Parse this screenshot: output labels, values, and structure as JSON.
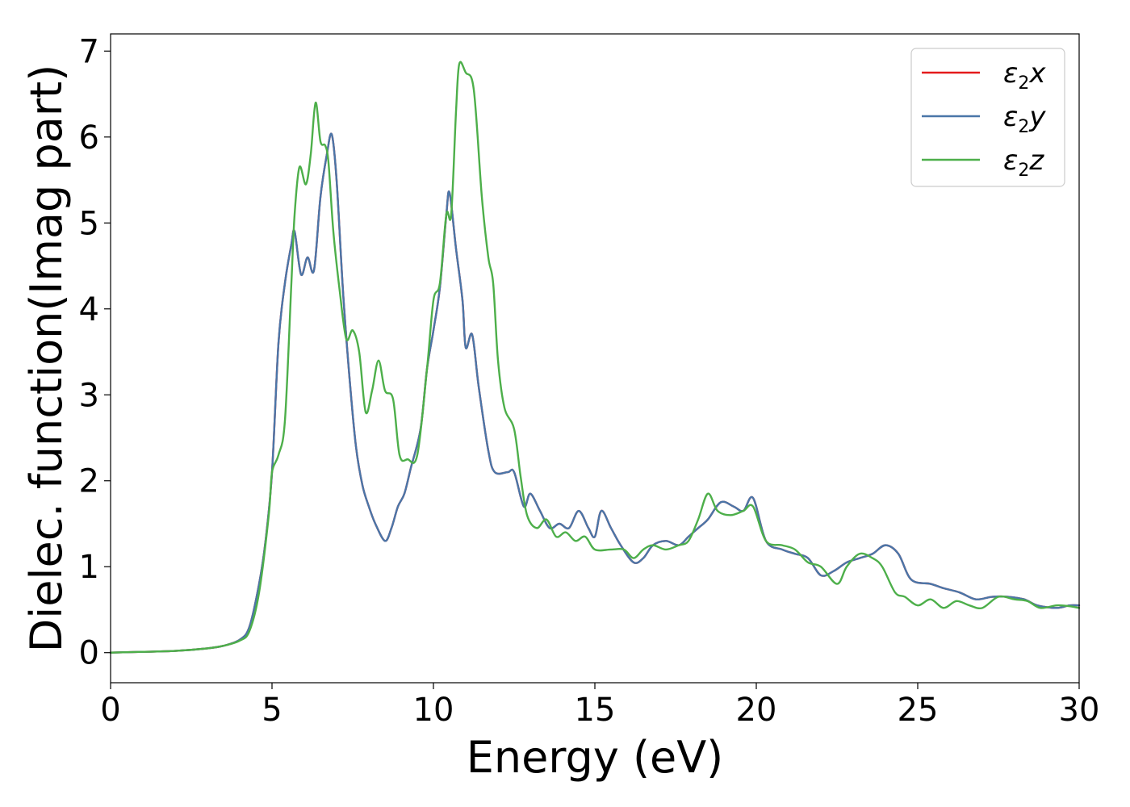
{
  "chart_data": {
    "type": "line",
    "title": "",
    "xlabel": "Energy (eV)",
    "ylabel": "Dielec. function(Imag part)",
    "xlim": [
      0,
      30
    ],
    "ylim": [
      -0.35,
      7.2
    ],
    "xticks": [
      0,
      5,
      10,
      15,
      20,
      25,
      30
    ],
    "yticks": [
      0,
      1,
      2,
      3,
      4,
      5,
      6,
      7
    ],
    "grid": false,
    "legend_position": "top-right",
    "series": [
      {
        "name": "ε2x",
        "legend_base": "ε",
        "legend_sub": "2",
        "legend_var": "x",
        "color": "#e41a1c",
        "points": [
          [
            0,
            0
          ],
          [
            1,
            0.01
          ],
          [
            2,
            0.02
          ],
          [
            3,
            0.05
          ],
          [
            3.5,
            0.08
          ],
          [
            4,
            0.15
          ],
          [
            4.3,
            0.3
          ],
          [
            4.6,
            0.8
          ],
          [
            4.8,
            1.3
          ],
          [
            5,
            2.1
          ],
          [
            5.2,
            3.6
          ],
          [
            5.4,
            4.3
          ],
          [
            5.6,
            4.75
          ],
          [
            5.7,
            4.9
          ],
          [
            5.9,
            4.4
          ],
          [
            6.1,
            4.6
          ],
          [
            6.3,
            4.45
          ],
          [
            6.5,
            5.3
          ],
          [
            6.7,
            5.8
          ],
          [
            6.85,
            6.03
          ],
          [
            7,
            5.5
          ],
          [
            7.2,
            4.2
          ],
          [
            7.4,
            3.2
          ],
          [
            7.6,
            2.4
          ],
          [
            7.8,
            1.95
          ],
          [
            8,
            1.7
          ],
          [
            8.2,
            1.5
          ],
          [
            8.5,
            1.3
          ],
          [
            8.7,
            1.45
          ],
          [
            8.9,
            1.7
          ],
          [
            9.1,
            1.85
          ],
          [
            9.3,
            2.15
          ],
          [
            9.6,
            2.6
          ],
          [
            9.8,
            3.3
          ],
          [
            10,
            3.75
          ],
          [
            10.2,
            4.25
          ],
          [
            10.4,
            5.1
          ],
          [
            10.5,
            5.35
          ],
          [
            10.7,
            4.7
          ],
          [
            10.9,
            4.1
          ],
          [
            11,
            3.55
          ],
          [
            11.2,
            3.7
          ],
          [
            11.4,
            3.1
          ],
          [
            11.7,
            2.35
          ],
          [
            11.9,
            2.1
          ],
          [
            12.3,
            2.1
          ],
          [
            12.5,
            2.1
          ],
          [
            12.8,
            1.7
          ],
          [
            13,
            1.85
          ],
          [
            13.3,
            1.65
          ],
          [
            13.6,
            1.45
          ],
          [
            13.9,
            1.5
          ],
          [
            14.2,
            1.45
          ],
          [
            14.5,
            1.65
          ],
          [
            14.8,
            1.45
          ],
          [
            15,
            1.35
          ],
          [
            15.2,
            1.65
          ],
          [
            15.5,
            1.45
          ],
          [
            15.8,
            1.25
          ],
          [
            16.2,
            1.05
          ],
          [
            16.5,
            1.1
          ],
          [
            16.8,
            1.25
          ],
          [
            17.2,
            1.3
          ],
          [
            17.6,
            1.25
          ],
          [
            17.9,
            1.35
          ],
          [
            18.2,
            1.45
          ],
          [
            18.5,
            1.55
          ],
          [
            18.9,
            1.75
          ],
          [
            19.3,
            1.7
          ],
          [
            19.6,
            1.65
          ],
          [
            19.9,
            1.8
          ],
          [
            20.3,
            1.3
          ],
          [
            20.8,
            1.2
          ],
          [
            21.2,
            1.15
          ],
          [
            21.6,
            1.1
          ],
          [
            22,
            0.9
          ],
          [
            22.4,
            0.95
          ],
          [
            22.8,
            1.05
          ],
          [
            23.2,
            1.1
          ],
          [
            23.6,
            1.15
          ],
          [
            24,
            1.25
          ],
          [
            24.4,
            1.15
          ],
          [
            24.8,
            0.85
          ],
          [
            25.4,
            0.8
          ],
          [
            25.8,
            0.75
          ],
          [
            26.3,
            0.7
          ],
          [
            26.8,
            0.62
          ],
          [
            27.3,
            0.65
          ],
          [
            27.8,
            0.65
          ],
          [
            28.3,
            0.62
          ],
          [
            28.7,
            0.55
          ],
          [
            29.3,
            0.52
          ],
          [
            29.7,
            0.55
          ],
          [
            30,
            0.55
          ]
        ]
      },
      {
        "name": "ε2y",
        "legend_base": "ε",
        "legend_sub": "2",
        "legend_var": "y",
        "color": "#4a76a8",
        "points": [
          [
            0,
            0
          ],
          [
            1,
            0.01
          ],
          [
            2,
            0.02
          ],
          [
            3,
            0.05
          ],
          [
            3.5,
            0.08
          ],
          [
            4,
            0.15
          ],
          [
            4.3,
            0.3
          ],
          [
            4.6,
            0.8
          ],
          [
            4.8,
            1.3
          ],
          [
            5,
            2.1
          ],
          [
            5.2,
            3.6
          ],
          [
            5.4,
            4.3
          ],
          [
            5.6,
            4.75
          ],
          [
            5.7,
            4.9
          ],
          [
            5.9,
            4.4
          ],
          [
            6.1,
            4.6
          ],
          [
            6.3,
            4.45
          ],
          [
            6.5,
            5.3
          ],
          [
            6.7,
            5.8
          ],
          [
            6.85,
            6.03
          ],
          [
            7,
            5.5
          ],
          [
            7.2,
            4.2
          ],
          [
            7.4,
            3.2
          ],
          [
            7.6,
            2.4
          ],
          [
            7.8,
            1.95
          ],
          [
            8,
            1.7
          ],
          [
            8.2,
            1.5
          ],
          [
            8.5,
            1.3
          ],
          [
            8.7,
            1.45
          ],
          [
            8.9,
            1.7
          ],
          [
            9.1,
            1.85
          ],
          [
            9.3,
            2.15
          ],
          [
            9.6,
            2.6
          ],
          [
            9.8,
            3.3
          ],
          [
            10,
            3.75
          ],
          [
            10.2,
            4.25
          ],
          [
            10.4,
            5.1
          ],
          [
            10.5,
            5.35
          ],
          [
            10.7,
            4.7
          ],
          [
            10.9,
            4.1
          ],
          [
            11,
            3.55
          ],
          [
            11.2,
            3.7
          ],
          [
            11.4,
            3.1
          ],
          [
            11.7,
            2.35
          ],
          [
            11.9,
            2.1
          ],
          [
            12.3,
            2.1
          ],
          [
            12.5,
            2.1
          ],
          [
            12.8,
            1.7
          ],
          [
            13,
            1.85
          ],
          [
            13.3,
            1.65
          ],
          [
            13.6,
            1.45
          ],
          [
            13.9,
            1.5
          ],
          [
            14.2,
            1.45
          ],
          [
            14.5,
            1.65
          ],
          [
            14.8,
            1.45
          ],
          [
            15,
            1.35
          ],
          [
            15.2,
            1.65
          ],
          [
            15.5,
            1.45
          ],
          [
            15.8,
            1.25
          ],
          [
            16.2,
            1.05
          ],
          [
            16.5,
            1.1
          ],
          [
            16.8,
            1.25
          ],
          [
            17.2,
            1.3
          ],
          [
            17.6,
            1.25
          ],
          [
            17.9,
            1.35
          ],
          [
            18.2,
            1.45
          ],
          [
            18.5,
            1.55
          ],
          [
            18.9,
            1.75
          ],
          [
            19.3,
            1.7
          ],
          [
            19.6,
            1.65
          ],
          [
            19.9,
            1.8
          ],
          [
            20.3,
            1.3
          ],
          [
            20.8,
            1.2
          ],
          [
            21.2,
            1.15
          ],
          [
            21.6,
            1.1
          ],
          [
            22,
            0.9
          ],
          [
            22.4,
            0.95
          ],
          [
            22.8,
            1.05
          ],
          [
            23.2,
            1.1
          ],
          [
            23.6,
            1.15
          ],
          [
            24,
            1.25
          ],
          [
            24.4,
            1.15
          ],
          [
            24.8,
            0.85
          ],
          [
            25.4,
            0.8
          ],
          [
            25.8,
            0.75
          ],
          [
            26.3,
            0.7
          ],
          [
            26.8,
            0.62
          ],
          [
            27.3,
            0.65
          ],
          [
            27.8,
            0.65
          ],
          [
            28.3,
            0.62
          ],
          [
            28.7,
            0.55
          ],
          [
            29.3,
            0.52
          ],
          [
            29.7,
            0.55
          ],
          [
            30,
            0.55
          ]
        ]
      },
      {
        "name": "ε2z",
        "legend_base": "ε",
        "legend_sub": "2",
        "legend_var": "z",
        "color": "#4daf4a",
        "points": [
          [
            0,
            0
          ],
          [
            1,
            0.01
          ],
          [
            2,
            0.02
          ],
          [
            3,
            0.05
          ],
          [
            3.5,
            0.08
          ],
          [
            4,
            0.14
          ],
          [
            4.3,
            0.25
          ],
          [
            4.6,
            0.7
          ],
          [
            4.9,
            1.6
          ],
          [
            5,
            2.1
          ],
          [
            5.2,
            2.3
          ],
          [
            5.4,
            2.7
          ],
          [
            5.6,
            4.3
          ],
          [
            5.7,
            5.1
          ],
          [
            5.85,
            5.65
          ],
          [
            6.05,
            5.45
          ],
          [
            6.2,
            5.8
          ],
          [
            6.35,
            6.4
          ],
          [
            6.5,
            5.95
          ],
          [
            6.65,
            5.9
          ],
          [
            6.75,
            5.7
          ],
          [
            6.9,
            4.9
          ],
          [
            7.1,
            4.2
          ],
          [
            7.3,
            3.65
          ],
          [
            7.5,
            3.75
          ],
          [
            7.7,
            3.5
          ],
          [
            7.9,
            2.8
          ],
          [
            8.1,
            3.05
          ],
          [
            8.3,
            3.4
          ],
          [
            8.5,
            3.05
          ],
          [
            8.75,
            2.95
          ],
          [
            8.95,
            2.3
          ],
          [
            9.2,
            2.25
          ],
          [
            9.5,
            2.3
          ],
          [
            9.8,
            3.3
          ],
          [
            10,
            4.1
          ],
          [
            10.2,
            4.3
          ],
          [
            10.4,
            5.1
          ],
          [
            10.55,
            5.1
          ],
          [
            10.7,
            6.3
          ],
          [
            10.8,
            6.85
          ],
          [
            11,
            6.75
          ],
          [
            11.25,
            6.55
          ],
          [
            11.5,
            5.3
          ],
          [
            11.7,
            4.6
          ],
          [
            11.85,
            4.3
          ],
          [
            12,
            3.4
          ],
          [
            12.2,
            2.85
          ],
          [
            12.5,
            2.6
          ],
          [
            12.7,
            2.05
          ],
          [
            12.9,
            1.6
          ],
          [
            13.2,
            1.45
          ],
          [
            13.5,
            1.55
          ],
          [
            13.8,
            1.35
          ],
          [
            14.1,
            1.4
          ],
          [
            14.4,
            1.3
          ],
          [
            14.7,
            1.35
          ],
          [
            15,
            1.2
          ],
          [
            15.5,
            1.2
          ],
          [
            15.9,
            1.2
          ],
          [
            16.2,
            1.1
          ],
          [
            16.5,
            1.2
          ],
          [
            16.8,
            1.25
          ],
          [
            17.2,
            1.2
          ],
          [
            17.6,
            1.25
          ],
          [
            17.9,
            1.3
          ],
          [
            18.2,
            1.55
          ],
          [
            18.5,
            1.85
          ],
          [
            18.8,
            1.65
          ],
          [
            19.2,
            1.6
          ],
          [
            19.6,
            1.65
          ],
          [
            19.9,
            1.7
          ],
          [
            20.3,
            1.3
          ],
          [
            20.8,
            1.25
          ],
          [
            21.2,
            1.2
          ],
          [
            21.6,
            1.05
          ],
          [
            22,
            1.0
          ],
          [
            22.5,
            0.8
          ],
          [
            22.8,
            1.0
          ],
          [
            23.2,
            1.15
          ],
          [
            23.6,
            1.1
          ],
          [
            23.9,
            1.0
          ],
          [
            24.3,
            0.7
          ],
          [
            24.6,
            0.65
          ],
          [
            25,
            0.55
          ],
          [
            25.4,
            0.62
          ],
          [
            25.8,
            0.52
          ],
          [
            26.2,
            0.6
          ],
          [
            26.6,
            0.55
          ],
          [
            27,
            0.52
          ],
          [
            27.5,
            0.65
          ],
          [
            28,
            0.62
          ],
          [
            28.4,
            0.6
          ],
          [
            28.8,
            0.52
          ],
          [
            29.3,
            0.55
          ],
          [
            29.7,
            0.54
          ],
          [
            30,
            0.52
          ]
        ]
      }
    ]
  }
}
